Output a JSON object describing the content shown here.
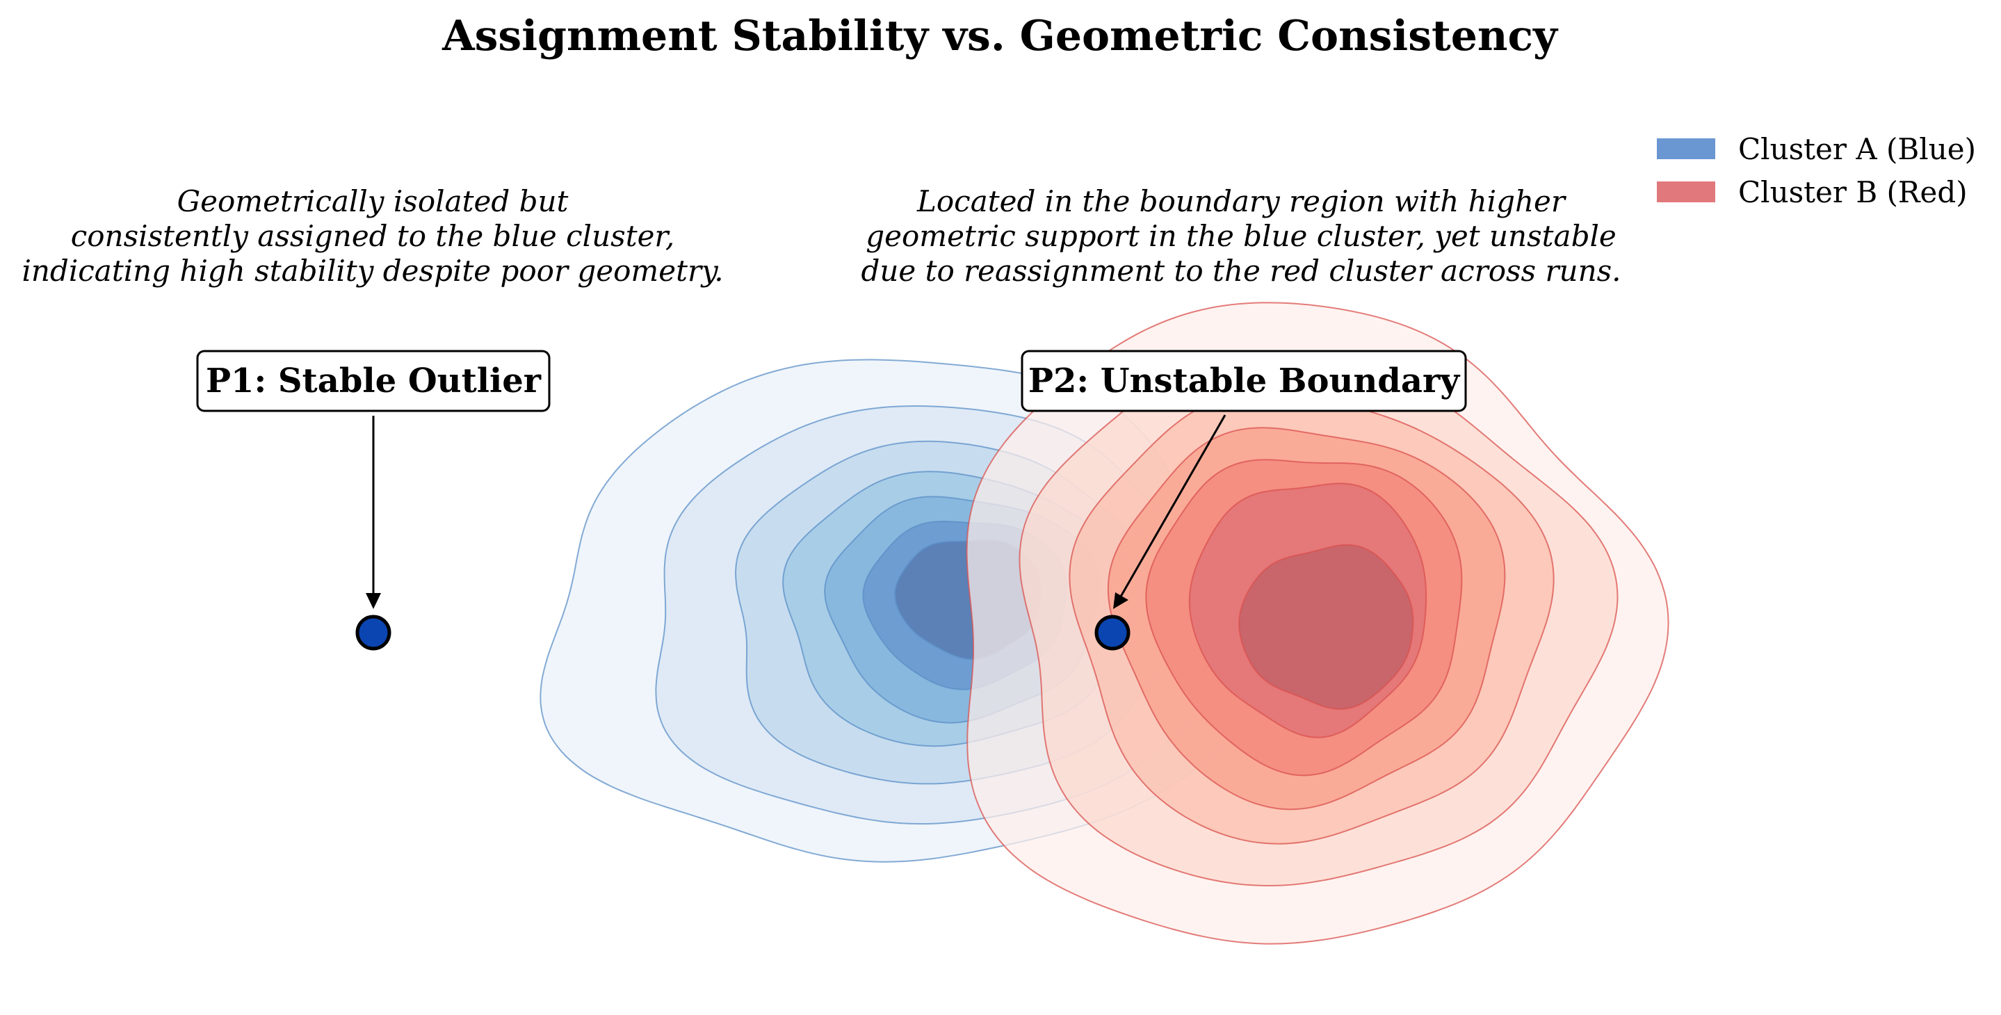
{
  "title": "Assignment Stability vs. Geometric Consistency",
  "legend": {
    "items": [
      {
        "label": "Cluster A (Blue)",
        "color": "#6a96d2"
      },
      {
        "label": "Cluster B (Red)",
        "color": "#e1787c"
      }
    ]
  },
  "clusters": {
    "blue": {
      "name": "Cluster A (Blue)",
      "line_color": "#5c8fc7",
      "fills": [
        "#eef4fb",
        "#dde9f5",
        "#c5dcee",
        "#a6cbe6",
        "#86b6dd",
        "#6b9bd0",
        "#5b80b5"
      ],
      "levels": 7
    },
    "red": {
      "name": "Cluster B (Red)",
      "line_color": "#d9524f",
      "fills": [
        "#fdeeea",
        "#fcd9cf",
        "#fbbfae",
        "#f9a08b",
        "#f1837a",
        "#df6f75",
        "#bd5f67"
      ],
      "levels": 7
    }
  },
  "points": [
    {
      "id": "P1",
      "label": "P1: Stable Outlier",
      "description": [
        "Geometrically isolated but",
        "consistently assigned to the blue cluster,",
        "indicating high stability despite poor geometry."
      ],
      "color": "#0b45b1"
    },
    {
      "id": "P2",
      "label": "P2: Unstable Boundary",
      "description": [
        "Located in the boundary region with higher",
        "geometric support in the blue cluster, yet unstable",
        "due to reassignment to the red cluster across runs."
      ],
      "color": "#0b45b1"
    }
  ]
}
